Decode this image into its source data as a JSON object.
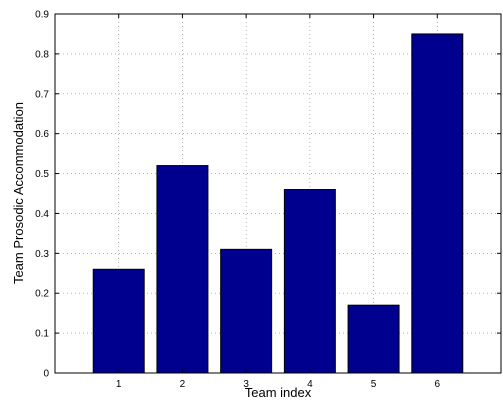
{
  "chart_data": {
    "type": "bar",
    "title": "",
    "xlabel": "Team index",
    "ylabel": "Team Prosodic Accommodation",
    "categories": [
      "1",
      "2",
      "3",
      "4",
      "5",
      "6"
    ],
    "values": [
      0.26,
      0.52,
      0.31,
      0.46,
      0.17,
      0.85
    ],
    "xlim": [
      0,
      7
    ],
    "ylim": [
      0,
      0.9
    ],
    "yticks": [
      "0",
      "0.1",
      "0.2",
      "0.3",
      "0.4",
      "0.5",
      "0.6",
      "0.7",
      "0.8",
      "0.9"
    ],
    "ytick_values": [
      0,
      0.1,
      0.2,
      0.3,
      0.4,
      0.5,
      0.6,
      0.7,
      0.8,
      0.9
    ],
    "grid": true,
    "bar_color": "#00008F",
    "bar_edge_color": "#000000"
  }
}
